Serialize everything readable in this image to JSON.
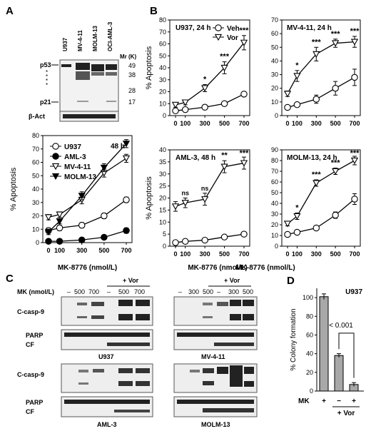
{
  "panels": {
    "A": "A",
    "B": "B",
    "C": "C",
    "D": "D"
  },
  "panelA_blot": {
    "lanes": [
      "U937",
      "MV-4-11",
      "MOLM-13",
      "OCI-AML-3"
    ],
    "mr_label": "Mr (K)",
    "mr_markers": [
      "49",
      "38",
      "28",
      "17"
    ],
    "rows": [
      "p53",
      "p21",
      "β-Act"
    ],
    "asterisks": [
      "*",
      "*",
      "*",
      "*"
    ]
  },
  "chart_data": [
    {
      "type": "line",
      "panel": "A",
      "annotation": "48 h",
      "xlabel": "MK-8776 (nmol/L)",
      "ylabel": "% Apoptosis",
      "x": [
        0,
        100,
        300,
        500,
        700
      ],
      "xticks": [
        "0",
        "100",
        "300",
        "500",
        "700"
      ],
      "ylim": [
        0,
        80
      ],
      "yticks": [
        "0",
        "10",
        "20",
        "30",
        "40",
        "50",
        "60",
        "70",
        "80"
      ],
      "series": [
        {
          "name": "U937",
          "marker": "open-circle",
          "values": [
            9,
            11,
            13,
            20,
            32
          ],
          "err": [
            2,
            2,
            2,
            2,
            2
          ]
        },
        {
          "name": "AML-3",
          "marker": "filled-circle",
          "values": [
            1,
            1,
            2,
            4,
            9
          ],
          "err": [
            1,
            1,
            1,
            1,
            2
          ]
        },
        {
          "name": "MV-4-11",
          "marker": "open-triangle-down",
          "values": [
            19,
            21,
            32,
            52,
            63
          ],
          "err": [
            2,
            2,
            3,
            3,
            3
          ]
        },
        {
          "name": "MOLM-13",
          "marker": "filled-triangle-down",
          "values": [
            8,
            16,
            35,
            56,
            74
          ],
          "err": [
            2,
            2,
            3,
            3,
            3
          ]
        }
      ]
    },
    {
      "type": "line",
      "panel": "B",
      "annotation": "U937, 24 h",
      "ylabel": "% Apoptosis",
      "x": [
        0,
        100,
        300,
        500,
        700
      ],
      "xticks": [
        "0",
        "100",
        "300",
        "500",
        "700"
      ],
      "ylim": [
        0,
        80
      ],
      "yticks": [
        "0",
        "10",
        "20",
        "30",
        "40",
        "50",
        "60",
        "70",
        "80"
      ],
      "series": [
        {
          "name": "Veh",
          "marker": "open-circle",
          "values": [
            4,
            5,
            7,
            10,
            18
          ],
          "err": [
            1,
            1,
            2,
            1,
            1
          ]
        },
        {
          "name": "Vor",
          "marker": "open-triangle-down",
          "values": [
            9,
            11,
            23,
            40,
            61
          ],
          "err": [
            2,
            2,
            3,
            5,
            6
          ]
        }
      ],
      "significance": [
        "",
        "",
        "*",
        "***",
        "***"
      ]
    },
    {
      "type": "line",
      "panel": "B",
      "annotation": "MV-4-11, 24 h",
      "x": [
        0,
        100,
        300,
        500,
        700
      ],
      "xticks": [
        "0",
        "100",
        "300",
        "500",
        "700"
      ],
      "ylim": [
        0,
        70
      ],
      "yticks": [
        "0",
        "10",
        "20",
        "30",
        "40",
        "50",
        "60",
        "70"
      ],
      "series": [
        {
          "name": "Veh",
          "marker": "open-circle",
          "values": [
            6,
            8,
            12,
            20,
            28
          ],
          "err": [
            1,
            1,
            3,
            5,
            6
          ]
        },
        {
          "name": "Vor",
          "marker": "open-triangle-down",
          "values": [
            16,
            29,
            45,
            53,
            54
          ],
          "err": [
            2,
            4,
            5,
            3,
            4
          ]
        }
      ],
      "significance": [
        "",
        "*",
        "***",
        "***",
        "***"
      ]
    },
    {
      "type": "line",
      "panel": "B",
      "annotation": "AML-3, 48 h",
      "xlabel": "MK-8776 (nmol/L)",
      "ylabel": "% Apoptosis",
      "x": [
        0,
        100,
        300,
        500,
        700
      ],
      "xticks": [
        "0",
        "100",
        "300",
        "500",
        "700"
      ],
      "ylim": [
        0,
        40
      ],
      "yticks": [
        "0",
        "5",
        "10",
        "15",
        "20",
        "25",
        "30",
        "35",
        "40"
      ],
      "series": [
        {
          "name": "Veh",
          "marker": "open-circle",
          "values": [
            1.5,
            2,
            2.5,
            3.8,
            5
          ],
          "err": [
            0.5,
            0.5,
            0.5,
            0.5,
            0.5
          ]
        },
        {
          "name": "Vor",
          "marker": "open-triangle-down",
          "values": [
            16.5,
            18,
            19.5,
            33,
            34.5
          ],
          "err": [
            2,
            2,
            2.5,
            2.5,
            2.5
          ]
        }
      ],
      "significance": [
        "",
        "ns",
        "ns",
        "**",
        "***"
      ]
    },
    {
      "type": "line",
      "panel": "B",
      "annotation": "MOLM-13, 24 h",
      "xlabel": "MK-8776 (nmol/L)",
      "x": [
        0,
        100,
        300,
        500,
        700
      ],
      "xticks": [
        "0",
        "100",
        "300",
        "500",
        "700"
      ],
      "ylim": [
        0,
        90
      ],
      "yticks": [
        "0",
        "10",
        "20",
        "30",
        "40",
        "50",
        "60",
        "70",
        "80",
        "90"
      ],
      "series": [
        {
          "name": "Veh",
          "marker": "open-circle",
          "values": [
            11,
            13,
            17,
            29,
            44
          ],
          "err": [
            1,
            1,
            2,
            3,
            5
          ]
        },
        {
          "name": "Vor",
          "marker": "open-triangle-down",
          "values": [
            21,
            28,
            59,
            70,
            80
          ],
          "err": [
            2,
            3,
            3,
            3,
            4
          ]
        }
      ],
      "significance": [
        "",
        "*",
        "***",
        "***",
        "***"
      ]
    },
    {
      "type": "bar",
      "panel": "D",
      "annotation": "U937",
      "ylabel": "% Colony formation",
      "ylim": [
        0,
        110
      ],
      "yticks": [
        "0",
        "20",
        "40",
        "60",
        "80",
        "100"
      ],
      "categories": [
        "MK +",
        "Vor + MK −",
        "Vor + MK +"
      ],
      "values": [
        101,
        38,
        7
      ],
      "err": [
        3,
        2,
        2
      ],
      "mk_row_label": "MK",
      "mk_signs": [
        "+",
        "−",
        "+"
      ],
      "vor_label": "+ Vor",
      "pvalue": "< 0.001"
    }
  ],
  "panelC_blot": {
    "mk_label": "MK (nmol/L)",
    "vor_label": "+ Vor",
    "left_doses": [
      "–",
      "500",
      "700",
      "–",
      "500",
      "700"
    ],
    "right_doses": [
      "–",
      "300",
      "500",
      "–",
      "300",
      "500"
    ],
    "rows": [
      "C-casp-9",
      "PARP",
      "CF"
    ],
    "cell_lines": [
      "U937",
      "MV-4-11",
      "AML-3",
      "MOLM-13"
    ]
  }
}
